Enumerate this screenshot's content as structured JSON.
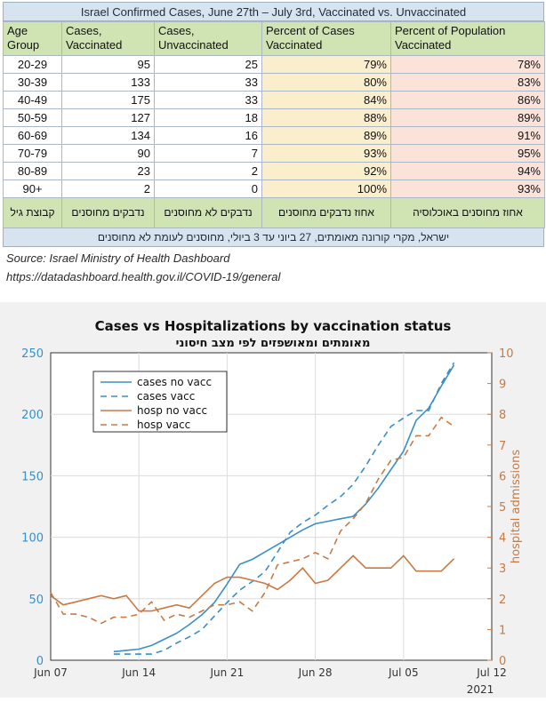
{
  "table": {
    "title": "Israel Confirmed Cases, June 27th – July 3rd, Vaccinated vs. Unvaccinated",
    "headers": [
      "Age Group",
      "Cases, Vaccinated",
      "Cases, Unvaccinated",
      "Percent of Cases Vaccinated",
      "Percent of Population Vaccinated"
    ],
    "rows": [
      [
        "20-29",
        "95",
        "25",
        "79%",
        "78%"
      ],
      [
        "30-39",
        "133",
        "33",
        "80%",
        "83%"
      ],
      [
        "40-49",
        "175",
        "33",
        "84%",
        "86%"
      ],
      [
        "50-59",
        "127",
        "18",
        "88%",
        "89%"
      ],
      [
        "60-69",
        "134",
        "16",
        "89%",
        "91%"
      ],
      [
        "70-79",
        "90",
        "7",
        "93%",
        "95%"
      ],
      [
        "80-89",
        "23",
        "2",
        "92%",
        "94%"
      ],
      [
        "90+",
        "2",
        "0",
        "100%",
        "93%"
      ]
    ],
    "hebrew_headers": [
      "קבוצת גיל",
      "נדבקים מחוסנים",
      "נדבקים לא מחוסנים",
      "אחוז נדבקים מחוסנים",
      "אחוז מחוסנים באוכלוסיה"
    ],
    "hebrew_note": "ישראל, מקרי קורונה מאומתים, 27 ביוני עד 3 ביולי, מחוסנים לעומת לא מחוסנים",
    "source": "Source: Israel Ministry of Health Dashboard",
    "url": "https://datadashboard.health.gov.il/COVID-19/general"
  },
  "chart_data": {
    "type": "line",
    "title": "Cases vs Hospitalizations by vaccination status",
    "subtitle": "מאומתים ומאושפזים לפי מצב חיסוני",
    "xlabel": "",
    "year_label": "2021",
    "x_ticks": [
      "Jun 07",
      "Jun 14",
      "Jun 21",
      "Jun 28",
      "Jul 05",
      "Jul 12"
    ],
    "ylabel_left": "",
    "ylabel_right": "hospital admissions",
    "ylim_left": [
      0,
      250
    ],
    "ylim_right": [
      0,
      10
    ],
    "yticks_left": [
      "0",
      "50",
      "100",
      "150",
      "200",
      "250"
    ],
    "yticks_right": [
      "0",
      "1",
      "2",
      "3",
      "4",
      "5",
      "6",
      "7",
      "8",
      "9",
      "10"
    ],
    "legend_position": "top-left",
    "series": [
      {
        "name": "cases no vacc",
        "axis": "left",
        "color": "#3a8fc4",
        "dash": "solid",
        "x": [
          "2021-06-12",
          "2021-06-13",
          "2021-06-14",
          "2021-06-15",
          "2021-06-16",
          "2021-06-17",
          "2021-06-18",
          "2021-06-19",
          "2021-06-20",
          "2021-06-21",
          "2021-06-22",
          "2021-06-23",
          "2021-06-24",
          "2021-06-25",
          "2021-06-26",
          "2021-06-27",
          "2021-06-28",
          "2021-06-29",
          "2021-06-30",
          "2021-07-01",
          "2021-07-02",
          "2021-07-03",
          "2021-07-04",
          "2021-07-05",
          "2021-07-06",
          "2021-07-07",
          "2021-07-08",
          "2021-07-09"
        ],
        "values": [
          7,
          8,
          9,
          12,
          17,
          22,
          29,
          37,
          47,
          62,
          78,
          82,
          88,
          94,
          100,
          106,
          111,
          113,
          115,
          117,
          127,
          140,
          155,
          170,
          195,
          205,
          223,
          240
        ]
      },
      {
        "name": "cases vacc",
        "axis": "left",
        "color": "#3a8fc4",
        "dash": "dashed",
        "x": [
          "2021-06-12",
          "2021-06-13",
          "2021-06-14",
          "2021-06-15",
          "2021-06-16",
          "2021-06-17",
          "2021-06-18",
          "2021-06-19",
          "2021-06-20",
          "2021-06-21",
          "2021-06-22",
          "2021-06-23",
          "2021-06-24",
          "2021-06-25",
          "2021-06-26",
          "2021-06-27",
          "2021-06-28",
          "2021-06-29",
          "2021-06-30",
          "2021-07-01",
          "2021-07-02",
          "2021-07-03",
          "2021-07-04",
          "2021-07-05",
          "2021-07-06",
          "2021-07-07",
          "2021-07-08",
          "2021-07-09"
        ],
        "values": [
          5,
          5,
          5,
          5,
          8,
          14,
          19,
          25,
          36,
          47,
          57,
          64,
          72,
          88,
          104,
          112,
          118,
          126,
          133,
          143,
          158,
          175,
          190,
          197,
          203,
          203,
          225,
          242
        ]
      },
      {
        "name": "hosp no vacc",
        "axis": "right",
        "color": "#c87a44",
        "dash": "solid",
        "x": [
          "2021-06-07",
          "2021-06-08",
          "2021-06-09",
          "2021-06-10",
          "2021-06-11",
          "2021-06-12",
          "2021-06-13",
          "2021-06-14",
          "2021-06-15",
          "2021-06-16",
          "2021-06-17",
          "2021-06-18",
          "2021-06-19",
          "2021-06-20",
          "2021-06-21",
          "2021-06-22",
          "2021-06-23",
          "2021-06-24",
          "2021-06-25",
          "2021-06-26",
          "2021-06-27",
          "2021-06-28",
          "2021-06-29",
          "2021-06-30",
          "2021-07-01",
          "2021-07-02",
          "2021-07-03",
          "2021-07-04",
          "2021-07-05",
          "2021-07-06",
          "2021-07-07",
          "2021-07-08",
          "2021-07-09"
        ],
        "values": [
          2.1,
          1.8,
          1.9,
          2.0,
          2.1,
          2.0,
          2.1,
          1.6,
          1.6,
          1.7,
          1.8,
          1.7,
          2.1,
          2.5,
          2.7,
          2.7,
          2.6,
          2.5,
          2.3,
          2.6,
          3.0,
          2.5,
          2.6,
          3.0,
          3.4,
          3.0,
          3.0,
          3.0,
          3.4,
          2.9,
          2.9,
          2.9,
          3.3
        ]
      },
      {
        "name": "hosp vacc",
        "axis": "right",
        "color": "#c87a44",
        "dash": "dashed",
        "x": [
          "2021-06-07",
          "2021-06-08",
          "2021-06-09",
          "2021-06-10",
          "2021-06-11",
          "2021-06-12",
          "2021-06-13",
          "2021-06-14",
          "2021-06-15",
          "2021-06-16",
          "2021-06-17",
          "2021-06-18",
          "2021-06-19",
          "2021-06-20",
          "2021-06-21",
          "2021-06-22",
          "2021-06-23",
          "2021-06-24",
          "2021-06-25",
          "2021-06-26",
          "2021-06-27",
          "2021-06-28",
          "2021-06-29",
          "2021-06-30",
          "2021-07-01",
          "2021-07-02",
          "2021-07-03",
          "2021-07-04",
          "2021-07-05",
          "2021-07-06",
          "2021-07-07",
          "2021-07-08",
          "2021-07-09"
        ],
        "values": [
          2.2,
          1.5,
          1.5,
          1.4,
          1.2,
          1.4,
          1.4,
          1.5,
          1.9,
          1.3,
          1.5,
          1.4,
          1.6,
          1.8,
          1.8,
          1.9,
          1.6,
          2.2,
          3.1,
          3.2,
          3.3,
          3.5,
          3.3,
          4.2,
          4.6,
          5.1,
          5.9,
          6.5,
          6.6,
          7.3,
          7.3,
          7.9,
          7.6
        ]
      }
    ]
  }
}
